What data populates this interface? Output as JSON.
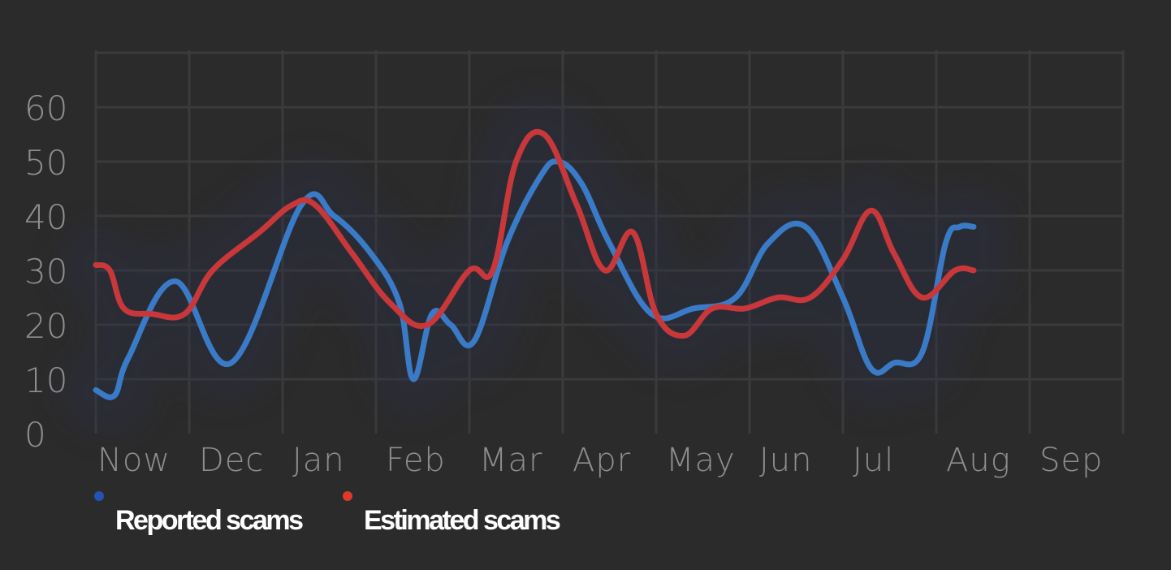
{
  "colors": {
    "background": "#2b2b2b",
    "grid": "#3b3b3b",
    "tick_text": "#8e8e8e",
    "reported_line": "#3a7bc8",
    "reported_dot": "#2452b8",
    "estimated_line": "#c8373a",
    "estimated_dot": "#e0392b",
    "legend_text": "#ffffff"
  },
  "chart_data": {
    "type": "line",
    "title": "",
    "xlabel": "",
    "ylabel": "",
    "categories": [
      "Now",
      "Dec",
      "Jan",
      "Feb",
      "Mar",
      "Apr",
      "May",
      "Jun",
      "Jul",
      "Aug",
      "Sep"
    ],
    "y_ticks": [
      "0",
      "10",
      "20",
      "30",
      "40",
      "50",
      "60"
    ],
    "ylim": [
      0,
      70
    ],
    "grid": true,
    "legend_position": "bottom-left",
    "series": [
      {
        "name": "Reported scams",
        "color": "#3a7bc8",
        "x": [
          0.0,
          0.2,
          0.35,
          0.85,
          1.45,
          2.2,
          2.55,
          2.95,
          3.25,
          3.4,
          3.6,
          3.8,
          4.05,
          4.4,
          4.75,
          4.95,
          5.2,
          5.5,
          5.95,
          6.4,
          6.85,
          7.2,
          7.6,
          8.0,
          8.3,
          8.55,
          8.85,
          9.1,
          9.25,
          9.4
        ],
        "values": [
          8,
          7,
          14,
          28,
          13,
          42,
          40,
          33,
          24,
          10,
          22,
          20,
          17,
          35,
          47,
          50,
          46,
          35,
          22,
          23,
          25,
          35,
          38,
          25,
          12,
          13,
          15,
          35,
          38,
          38
        ]
      },
      {
        "name": "Estimated scams",
        "color": "#c8373a",
        "x": [
          0.0,
          0.15,
          0.3,
          0.6,
          0.95,
          1.25,
          1.75,
          2.1,
          2.35,
          2.75,
          3.15,
          3.55,
          4.0,
          4.25,
          4.5,
          4.8,
          5.15,
          5.45,
          5.75,
          6.0,
          6.3,
          6.6,
          6.95,
          7.3,
          7.65,
          8.0,
          8.3,
          8.55,
          8.85,
          9.2,
          9.4
        ],
        "values": [
          31,
          30,
          23,
          22,
          22,
          30,
          37,
          42,
          42,
          33,
          24,
          20,
          30,
          30,
          50,
          55,
          42,
          30,
          37,
          22,
          18,
          23,
          23,
          25,
          25,
          32,
          41,
          33,
          25,
          30,
          30
        ]
      }
    ]
  }
}
